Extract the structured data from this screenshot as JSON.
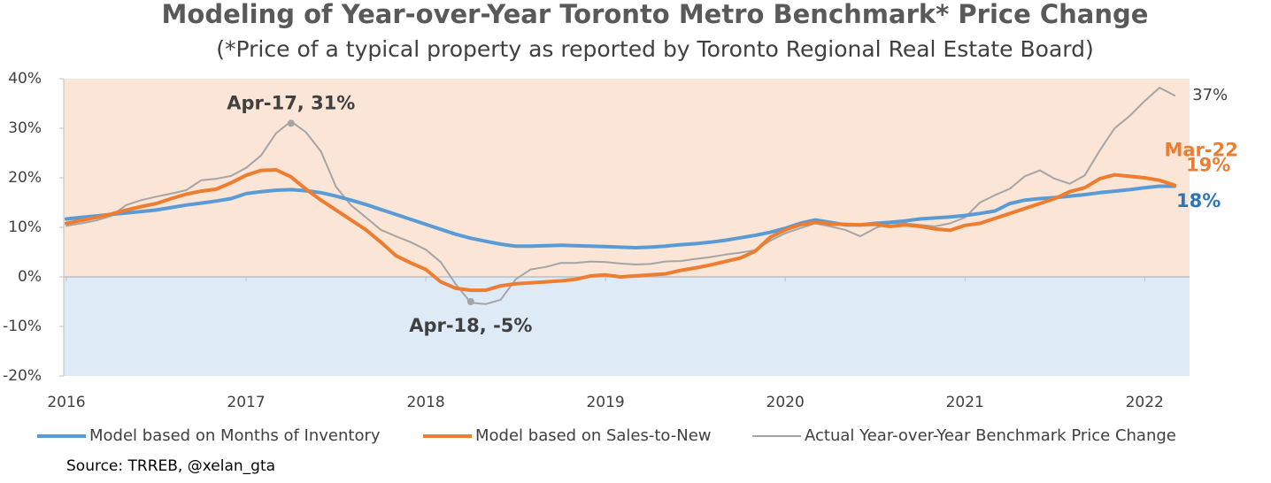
{
  "chart_data": {
    "type": "line",
    "title": "Modeling of Year-over-Year Toronto Metro Benchmark* Price Change",
    "subtitle": "(*Price of a typical property as reported by Toronto Regional Real Estate Board)",
    "source": "Source: TRREB, @xelan_gta",
    "x": [
      2016,
      2016.083,
      2016.167,
      2016.25,
      2016.333,
      2016.417,
      2016.5,
      2016.583,
      2016.667,
      2016.75,
      2016.833,
      2016.917,
      2017,
      2017.083,
      2017.167,
      2017.25,
      2017.333,
      2017.417,
      2017.5,
      2017.583,
      2017.667,
      2017.75,
      2017.833,
      2017.917,
      2018,
      2018.083,
      2018.167,
      2018.25,
      2018.333,
      2018.417,
      2018.5,
      2018.583,
      2018.667,
      2018.75,
      2018.833,
      2018.917,
      2019,
      2019.083,
      2019.167,
      2019.25,
      2019.333,
      2019.417,
      2019.5,
      2019.583,
      2019.667,
      2019.75,
      2019.833,
      2019.917,
      2020,
      2020.083,
      2020.167,
      2020.25,
      2020.333,
      2020.417,
      2020.5,
      2020.583,
      2020.667,
      2020.75,
      2020.833,
      2020.917,
      2021,
      2021.083,
      2021.167,
      2021.25,
      2021.333,
      2021.417,
      2021.5,
      2021.583,
      2021.667,
      2021.75,
      2021.833,
      2021.917,
      2022,
      2022.083,
      2022.167
    ],
    "series": [
      {
        "name": "Model based on Months of Inventory",
        "color": "#5b9bd5",
        "width": 4,
        "values": [
          11.7,
          12.0,
          12.3,
          12.6,
          12.9,
          13.2,
          13.5,
          14.0,
          14.5,
          14.9,
          15.3,
          15.8,
          16.8,
          17.2,
          17.5,
          17.6,
          17.4,
          17.0,
          16.3,
          15.5,
          14.6,
          13.6,
          12.6,
          11.6,
          10.6,
          9.6,
          8.6,
          7.8,
          7.2,
          6.6,
          6.2,
          6.2,
          6.3,
          6.4,
          6.3,
          6.2,
          6.1,
          6.0,
          5.9,
          6.0,
          6.2,
          6.5,
          6.7,
          7.0,
          7.4,
          7.9,
          8.4,
          9.0,
          9.8,
          10.8,
          11.5,
          11.0,
          10.5,
          10.5,
          10.8,
          11.0,
          11.3,
          11.7,
          11.9,
          12.1,
          12.4,
          12.8,
          13.3,
          14.8,
          15.5,
          15.8,
          16.0,
          16.3,
          16.6,
          17.0,
          17.3,
          17.6,
          18.0,
          18.3,
          18.3
        ]
      },
      {
        "name": "Model based on Sales-to-New",
        "color": "#ed7d31",
        "width": 4,
        "values": [
          10.8,
          11.4,
          12.0,
          12.7,
          13.5,
          14.2,
          14.8,
          15.8,
          16.7,
          17.3,
          17.7,
          19.0,
          20.5,
          21.5,
          21.6,
          20.2,
          17.7,
          15.5,
          13.5,
          11.5,
          9.5,
          7.0,
          4.3,
          2.8,
          1.5,
          -1.0,
          -2.3,
          -2.7,
          -2.7,
          -1.8,
          -1.4,
          -1.2,
          -1.0,
          -0.8,
          -0.5,
          0.2,
          0.4,
          0.0,
          0.2,
          0.4,
          0.6,
          1.3,
          1.8,
          2.4,
          3.1,
          3.8,
          5.2,
          8.0,
          9.5,
          10.5,
          11.0,
          10.7,
          10.6,
          10.5,
          10.6,
          10.2,
          10.5,
          10.2,
          9.7,
          9.4,
          10.4,
          10.8,
          11.8,
          12.8,
          13.8,
          14.8,
          15.8,
          17.2,
          18.0,
          19.8,
          20.6,
          20.3,
          20.0,
          19.5,
          18.5
        ]
      },
      {
        "name": "Actual Year-over-Year Benchmark Price Change",
        "color": "#a5a5a5",
        "width": 2,
        "values": [
          10.3,
          10.8,
          11.4,
          12.3,
          14.5,
          15.5,
          16.2,
          16.8,
          17.5,
          19.5,
          19.8,
          20.4,
          22.0,
          24.5,
          29.0,
          31.4,
          29.2,
          25.3,
          18.2,
          14.5,
          12.0,
          9.5,
          8.2,
          7.0,
          5.5,
          3.0,
          -1.5,
          -5.2,
          -5.5,
          -4.6,
          -0.5,
          1.5,
          2.0,
          2.8,
          2.8,
          3.1,
          3.0,
          2.7,
          2.5,
          2.6,
          3.1,
          3.2,
          3.6,
          4.0,
          4.5,
          4.9,
          5.4,
          7.3,
          8.8,
          9.8,
          10.8,
          10.2,
          9.5,
          8.2,
          9.8,
          10.9,
          10.8,
          10.5,
          10.2,
          10.8,
          12.0,
          15.0,
          16.5,
          17.8,
          20.3,
          21.5,
          19.8,
          18.8,
          20.5,
          25.5,
          30.0,
          32.5,
          35.5,
          38.2,
          36.6
        ]
      }
    ],
    "annotations": [
      {
        "text": "Apr-17, 31%",
        "x": 2017.25,
        "y": 31,
        "color": "#404040"
      },
      {
        "text": "Apr-18, -5%",
        "x": 2018.25,
        "y": -5,
        "color": "#404040"
      },
      {
        "text": "37%",
        "x": 2022.167,
        "y": 37,
        "color": "#404040"
      },
      {
        "text": "Mar-22",
        "color": "#ed7d31"
      },
      {
        "text": "19%",
        "x": 2022.167,
        "y": 19,
        "color": "#ed7d31"
      },
      {
        "text": "18%",
        "x": 2022.167,
        "y": 18,
        "color": "#2e75b6"
      }
    ],
    "xlim": [
      2016,
      2022.25
    ],
    "xticks": [
      2016,
      2017,
      2018,
      2019,
      2020,
      2021,
      2022
    ],
    "ylim": [
      -20,
      40
    ],
    "yticks": [
      {
        "value": -20,
        "label": "-20%"
      },
      {
        "value": -10,
        "label": "-10%"
      },
      {
        "value": 0,
        "label": "0%"
      },
      {
        "value": 10,
        "label": "10%"
      },
      {
        "value": 20,
        "label": "20%"
      },
      {
        "value": 30,
        "label": "30%"
      },
      {
        "value": 40,
        "label": "40%"
      }
    ],
    "positive_color": "#fbe5d6",
    "negative_color": "#deebf7",
    "legend": "bottom",
    "grid": false
  }
}
